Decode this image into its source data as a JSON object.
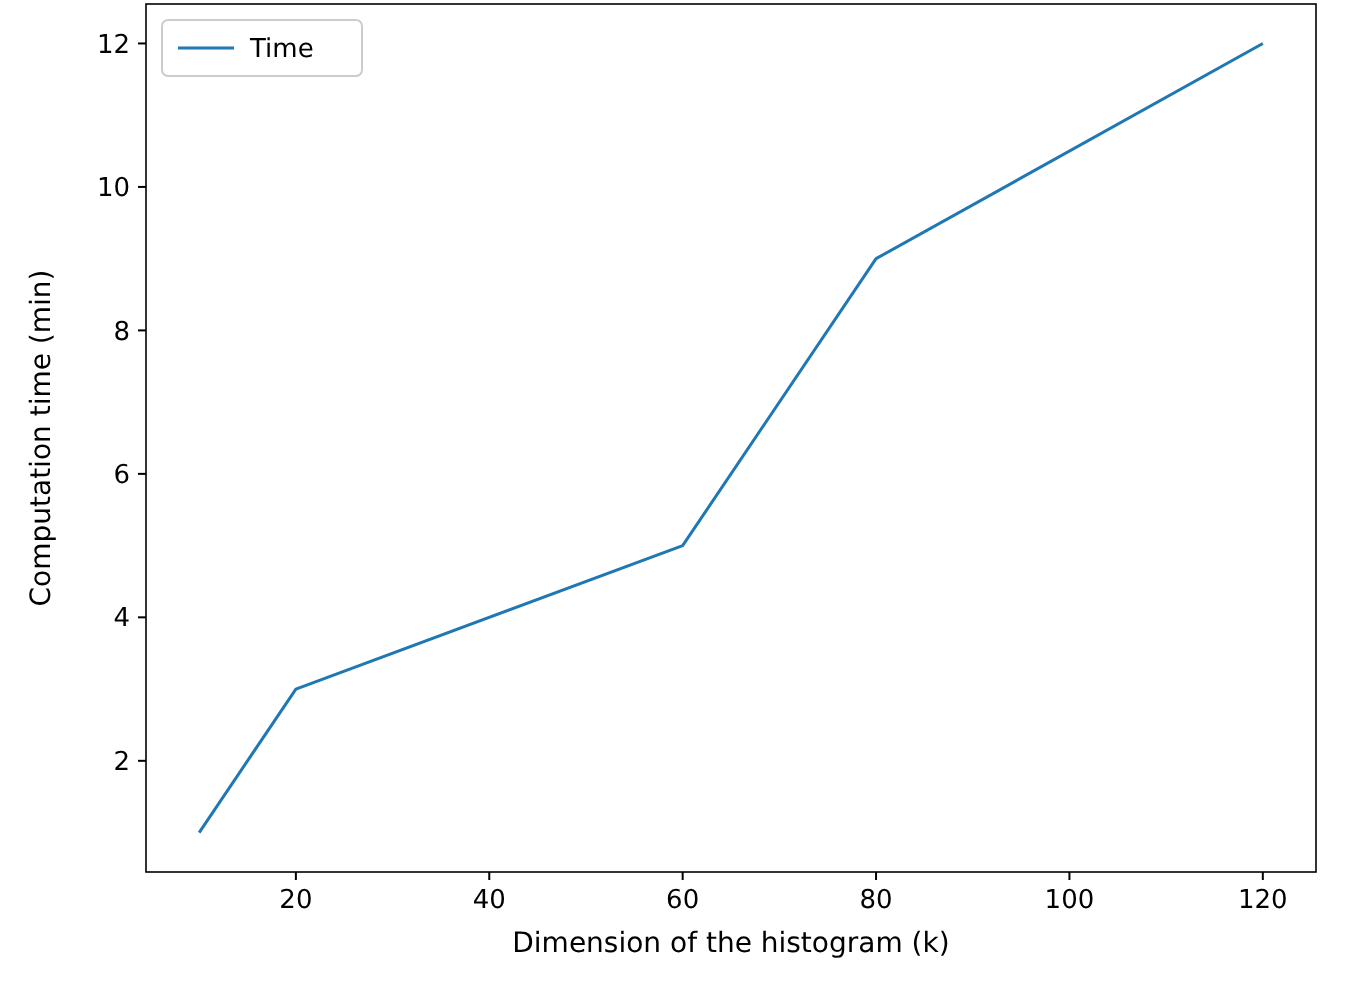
{
  "chart_data": {
    "type": "line",
    "xlabel": "Dimension of the histogram (k)",
    "ylabel": "Computation time (min)",
    "x": [
      10,
      20,
      60,
      80,
      120
    ],
    "series": [
      {
        "name": "Time",
        "color": "#1f77b4",
        "values": [
          1,
          3,
          5,
          9,
          12
        ]
      }
    ],
    "xlim": [
      4.5,
      125.5
    ],
    "xticks": [
      20,
      40,
      60,
      80,
      100,
      120
    ],
    "ylim": [
      0.45,
      12.55
    ],
    "yticks": [
      2,
      4,
      6,
      8,
      10,
      12
    ],
    "legend": "top left",
    "grid": false,
    "marker": "none",
    "line_style": "solid"
  }
}
